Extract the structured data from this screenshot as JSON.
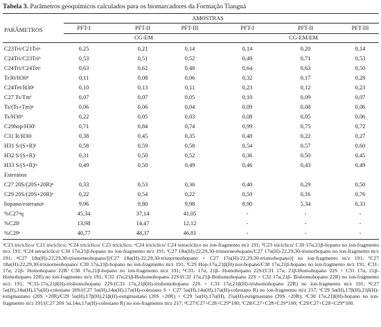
{
  "title": {
    "bold": "Tabela 3.",
    "text": " Parâmetros geoquímicos calculados para os biomarcadores da Formação Tianguá"
  },
  "header": {
    "param_label": "PARÂMETROS",
    "amostras_label": "AMOSTRAS",
    "method_left": "CG-EM",
    "method_right": "CG-EM/EM",
    "samples": [
      "PFT-I",
      "PFT-II",
      "PFT-III",
      "PFT-I",
      "PFT-II",
      "PFT-III"
    ]
  },
  "rows": [
    {
      "label": "C23Tri/C21Triᵃ",
      "values": [
        "0,25",
        "0,21",
        "0,14",
        "0,14",
        "0,20",
        "0,14"
      ]
    },
    {
      "label": "C24Tri/C23Triᵇ",
      "values": [
        "0,53",
        "0,51",
        "0,52",
        "0,49",
        "0,71",
        "0,53"
      ]
    },
    {
      "label": "C24Tri/C24Tetᶜ",
      "values": [
        "0,63",
        "0,62",
        "0,48",
        "0,64",
        "0,63",
        "0,50"
      ]
    },
    {
      "label": "Tr30/H30ᵈ",
      "values": [
        "0,11",
        "0,08",
        "0,06",
        "0,32",
        "0,17",
        "0,28"
      ]
    },
    {
      "label": "C24Tet/H30ᵉ",
      "values": [
        "0,10",
        "0,13",
        "0,11",
        "0,23",
        "0,12",
        "0,23"
      ]
    },
    {
      "label": "C27 Ts/Tmᶠ",
      "values": [
        "0,07",
        "0,07",
        "0,05",
        "0,10",
        "0,09",
        "0,07"
      ]
    },
    {
      "label": "Ts/(Ts+Tm)ᵍ",
      "values": [
        "0,06",
        "0,06",
        "0,04",
        "0,09",
        "0,08",
        "0,06"
      ]
    },
    {
      "label": "Ts/H30ʰ",
      "values": [
        "0,22",
        "0,05",
        "0,03",
        "0,08",
        "0,05",
        "0,06"
      ]
    },
    {
      "label": "C29hop/H30ⁱ",
      "values": [
        "0,71",
        "0,84",
        "0,74",
        "0,99",
        "0,75",
        "0,72"
      ]
    },
    {
      "label": "C31 R/H30ʲ",
      "values": [
        "0,38",
        "0,45",
        "0,35",
        "0,40",
        "0,22",
        "0,27"
      ]
    },
    {
      "label": "H31 S/(S+R)ᵏ",
      "values": [
        "0,58",
        "0,59",
        "0,58",
        "0,54",
        "0,57",
        "0,60"
      ]
    },
    {
      "label": "H32 S/(S+R)ˡ",
      "values": [
        "0,31",
        "0,50",
        "0,52",
        "0,36",
        "0,50",
        "0,45"
      ]
    },
    {
      "label": "H33 S/(S+R)ᵐ",
      "values": [
        "0,49",
        "0,50",
        "0,49",
        "0,46",
        "0,43",
        "0,49"
      ]
    },
    {
      "label": "Esteranos",
      "values": [
        "",
        "",
        "",
        "",
        "",
        ""
      ]
    },
    {
      "label": "C27 20S/(20S+20R)ⁿ",
      "values": [
        "0,33",
        "0,53",
        "0,36",
        "0,40",
        "0,29",
        "0,50"
      ]
    },
    {
      "label": "C29 20S/(20S+20R)ᵒ",
      "values": [
        "0,22",
        "0,54",
        "0,22",
        "0,50",
        "0,16",
        "0,76"
      ]
    },
    {
      "label": "hopano/esteranoᵖ",
      "values": [
        "9,96",
        "9,80",
        "9,98",
        "8,90",
        "5,34",
        "6,33"
      ]
    },
    {
      "label": "%C27ᵠq",
      "values": [
        "45,34",
        "37,14",
        "41,05",
        "-",
        "-",
        "-"
      ]
    },
    {
      "label": "%C28ʳ",
      "values": [
        "13,98",
        "14,47",
        "12,12",
        "-",
        "-",
        "-"
      ]
    },
    {
      "label": "%C29ˢ",
      "values": [
        "40,77",
        "48,37",
        "46,81",
        "-",
        "-",
        "-"
      ]
    }
  ],
  "notes": "ᵃC23 tricíclico/ C21 tricíclico; ᵇC24 tricíclico/ C23 tricíclico; ᶜC24 tricíclico/ C24 tetracíclico no íon-fragmento m/z 191; ᵈC23 tricíclico/ C30 17α,21β-hopano no íon-fragmento m/z 191; ᵉC24 tetracíclico/ C30 17α,21β-hopano no íon-fragmento m/z 191; ᶠC27 18α(H)-22,29,30-trisnorneohopano/C27 17α(H)-22,29,30-trisnorhopano no íon-fragmento m/z 191; ᵍC27 18α(H)-22,29,30-trisnorneohopano/[(C27 18α(H)-22,29,30-trisnorneohopano + C27 17α(H)-22,29,30-trisnorhopano)] no íon-fragmento m/z 191; ʰC27 18α(H)-22,29,30-trisnorneohopano/ C30 17α,21β-hopano no íon-fragmento m/z 191; ⁱC29 Hop-17α,21β(H)-nor-hopano/C30 17α,21β-hopano no íon-fragmento m/z 191; ʲC31- 17α, 21β- Homohopano 22R/ C30 17α,21β-hopano no íon-fragmento m/z 191; ᵏC31- 17α, 21β- Homohopano 22S/(C31 17α, 21β-Homohopano 22S + C31 17α, 21β-Homohopano 22R) no íon-fragmento m/z 191; ˡC32 17α,21β-Bishomohopano 22S/(C32 17α,21β-Bishomohopano 22S + C32 17α,21β- Bishomohopano 22R) no íon-fragmento m/z 191; ᵐC33-17α,21β(H)-trishomohopano 22S/(C33 17α,21β(H)-trishomohopano 22S + C33 17α,21β(H)-trishomohopano 22R) no íon-fragmento m/z 191; ⁿC27 5α(H),14α(H),17α(H)-colestano 20S/(C27 5α(H),14α(H),17α(H)-colestano S + C27 5α(H),14α(H),17α(H)-colestano R) no íon-fragmento m/z 217; ᵒC29 5α(H),17β(H),21β(H)-estigmastano (20S +20R)/C29 5α(H),17β(H),21β(H)-estigmastano (20S +20R) + C29 5α(H),17α(H), 21α(H)-estigmastano (20S +20R); ᵖC30 17α,21β(H)-hopano no íon-fragmento m/z 191/(C27 20S 5α,14α,17α(H)-colestano R) no íon-fragmento m/z 217; ᵠC27/C27+C28+C29*100; ʳC28/C27+C28+C29*100; ˢC29/C27+C28+C29*100."
}
